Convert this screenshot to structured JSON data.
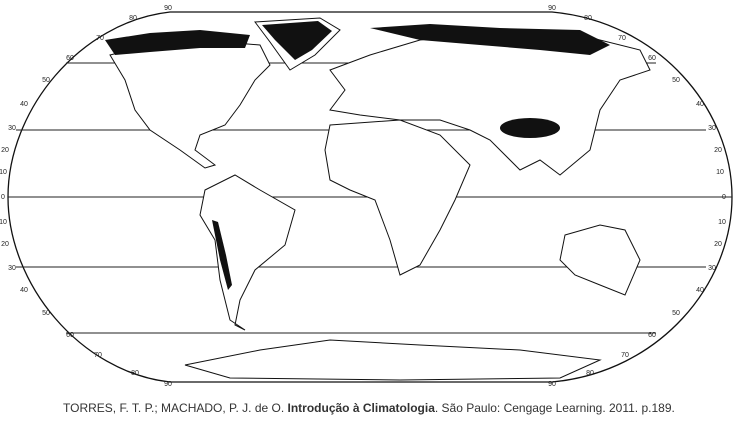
{
  "map": {
    "latitude_labels_left": [
      "90",
      "80",
      "70",
      "60",
      "50",
      "40",
      "30",
      "20",
      "10",
      "0",
      "10",
      "20",
      "30",
      "40",
      "50",
      "60",
      "70",
      "80",
      "90"
    ],
    "latitude_labels_right": [
      "90",
      "80",
      "70",
      "60",
      "50",
      "40",
      "30",
      "20",
      "10",
      "0",
      "10",
      "20",
      "30",
      "40",
      "50",
      "60",
      "70",
      "80",
      "90"
    ]
  },
  "caption": {
    "authors": "TORRES, F. T. P.; MACHADO, P. J. de O. ",
    "title": "Introdução à Climatologia",
    "publisher": ". São Paulo: Cengage Learning. 2011. p.189."
  }
}
